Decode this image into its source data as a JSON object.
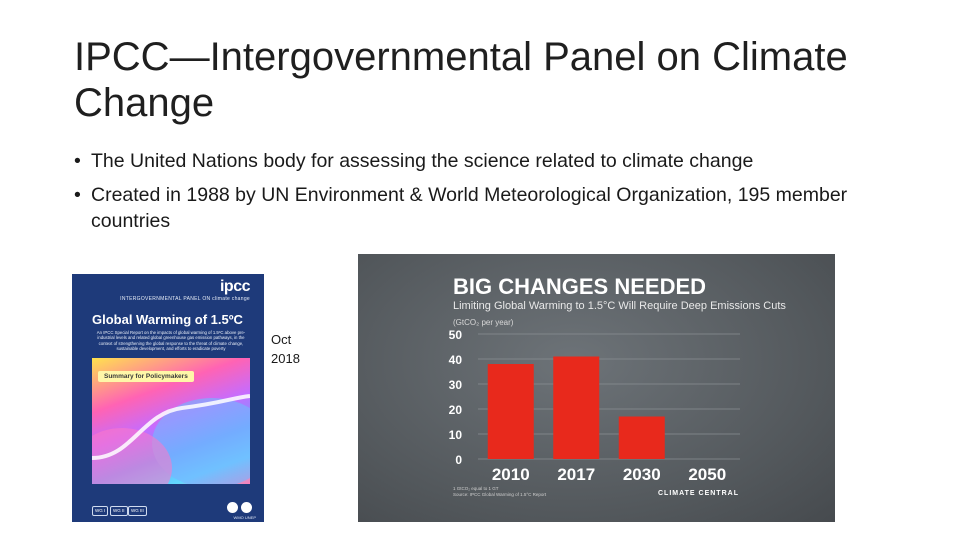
{
  "slide": {
    "title": "IPCC—Intergovernmental Panel on Climate Change",
    "bullets": [
      "The United Nations body for assessing the science related to climate change",
      "Created in 1988 by UN Environment & World Meteorological Organization, 195 member countries"
    ]
  },
  "cover": {
    "logo": "ipcc",
    "panel_line": "INTERGOVERNMENTAL PANEL ON climate change",
    "title": "Global Warming of 1.5ºC",
    "description": "An IPCC Special Report on the impacts of global warming of 1.5ºC above pre-industrial levels and related global greenhouse gas emission pathways, in the context of strengthening the global response to the threat of climate change, sustainable development, and efforts to eradicate poverty",
    "badge": "Summary for Policymakers",
    "working_groups": [
      "WG I",
      "WG II",
      "WG III"
    ],
    "footer_orgs": "WMO UNEP"
  },
  "caption": {
    "line1": "Oct",
    "line2": "2018"
  },
  "chart_data": {
    "type": "bar",
    "title": "BIG CHANGES NEEDED",
    "subtitle": "Limiting Global Warming to 1.5°C Will Require Deep Emissions Cuts",
    "ylabel": "(GtCO₂ per year)",
    "categories": [
      "2010",
      "2017",
      "2030",
      "2050"
    ],
    "values": [
      38,
      41,
      17,
      0
    ],
    "yticks": [
      "50",
      "40",
      "30",
      "20",
      "10",
      "0"
    ],
    "ytick_values": [
      50,
      40,
      30,
      20,
      10,
      0
    ],
    "ylim": [
      0,
      50
    ],
    "grid": true,
    "footnote1": "1 GtCO₂ equal to 1 GT",
    "footnote2": "Source: IPCC Global Warming of 1.5°C Report",
    "brand": "CLIMATE CENTRAL",
    "colors": {
      "bar": "#e8291c",
      "background": "#55595d",
      "title": "#ffffff",
      "subtitle": "#e9e9e9"
    }
  }
}
